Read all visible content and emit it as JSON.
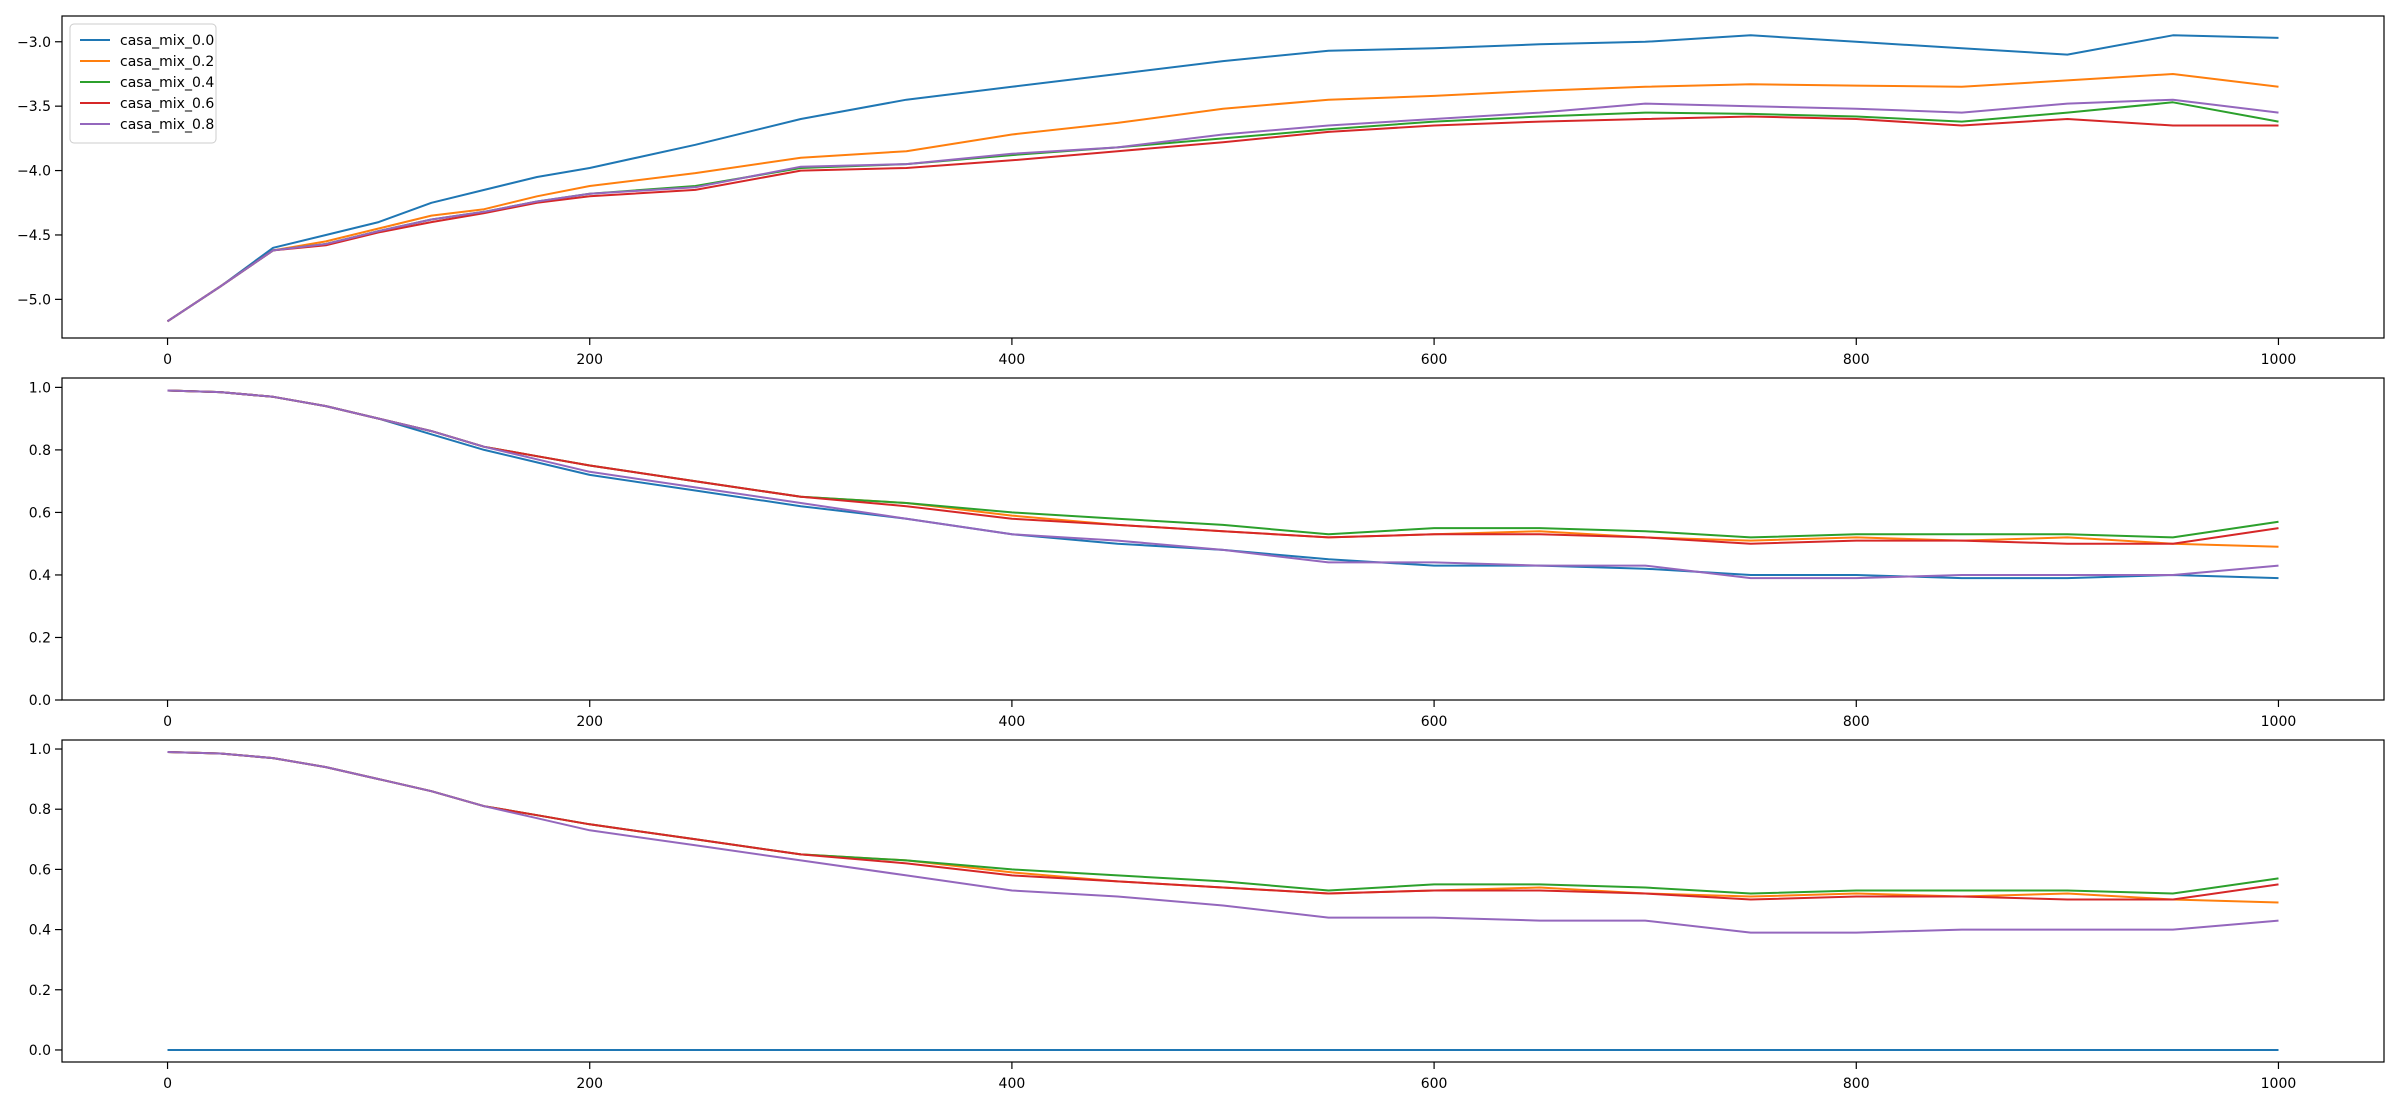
{
  "chart_data": [
    {
      "type": "line",
      "title": "",
      "xlabel": "",
      "ylabel": "",
      "xlim": [
        -50,
        1050
      ],
      "ylim": [
        -5.3,
        -2.8
      ],
      "xticks": [
        0,
        200,
        400,
        600,
        800,
        1000
      ],
      "yticks": [
        -5.0,
        -4.5,
        -4.0,
        -3.5,
        -3.0
      ],
      "ytick_labels": [
        "−5.0",
        "−4.5",
        "−4.0",
        "−3.5",
        "−3.0"
      ],
      "legend": {
        "placement": "upper-left",
        "entries": [
          "casa_mix_0.0",
          "casa_mix_0.2",
          "casa_mix_0.4",
          "casa_mix_0.6",
          "casa_mix_0.8"
        ]
      },
      "grid": false,
      "x": [
        0,
        25,
        50,
        75,
        100,
        125,
        150,
        175,
        200,
        250,
        300,
        350,
        400,
        450,
        500,
        550,
        600,
        650,
        700,
        750,
        800,
        850,
        900,
        950,
        1000
      ],
      "series": [
        {
          "name": "casa_mix_0.0",
          "color": "#1f77b4",
          "values": [
            -5.17,
            -4.9,
            -4.6,
            -4.5,
            -4.4,
            -4.25,
            -4.15,
            -4.05,
            -3.98,
            -3.8,
            -3.6,
            -3.45,
            -3.35,
            -3.25,
            -3.15,
            -3.07,
            -3.05,
            -3.02,
            -3.0,
            -2.95,
            -3.0,
            -3.05,
            -3.1,
            -2.95,
            -2.97
          ]
        },
        {
          "name": "casa_mix_0.2",
          "color": "#ff7f0e",
          "values": [
            -5.17,
            -4.9,
            -4.62,
            -4.55,
            -4.45,
            -4.35,
            -4.3,
            -4.2,
            -4.12,
            -4.02,
            -3.9,
            -3.85,
            -3.72,
            -3.63,
            -3.52,
            -3.45,
            -3.42,
            -3.38,
            -3.35,
            -3.33,
            -3.34,
            -3.35,
            -3.3,
            -3.25,
            -3.35
          ]
        },
        {
          "name": "casa_mix_0.4",
          "color": "#2ca02c",
          "values": [
            -5.17,
            -4.9,
            -4.62,
            -4.57,
            -4.47,
            -4.38,
            -4.32,
            -4.24,
            -4.18,
            -4.12,
            -3.98,
            -3.95,
            -3.88,
            -3.82,
            -3.75,
            -3.68,
            -3.62,
            -3.58,
            -3.55,
            -3.56,
            -3.58,
            -3.62,
            -3.55,
            -3.47,
            -3.62
          ]
        },
        {
          "name": "casa_mix_0.6",
          "color": "#d62728",
          "values": [
            -5.17,
            -4.9,
            -4.62,
            -4.58,
            -4.48,
            -4.4,
            -4.33,
            -4.25,
            -4.2,
            -4.15,
            -4.0,
            -3.98,
            -3.92,
            -3.85,
            -3.78,
            -3.7,
            -3.65,
            -3.62,
            -3.6,
            -3.58,
            -3.6,
            -3.65,
            -3.6,
            -3.65,
            -3.65
          ]
        },
        {
          "name": "casa_mix_0.8",
          "color": "#9467bd",
          "values": [
            -5.17,
            -4.9,
            -4.62,
            -4.57,
            -4.47,
            -4.38,
            -4.32,
            -4.24,
            -4.18,
            -4.13,
            -3.97,
            -3.95,
            -3.87,
            -3.82,
            -3.72,
            -3.65,
            -3.6,
            -3.55,
            -3.48,
            -3.5,
            -3.52,
            -3.55,
            -3.48,
            -3.45,
            -3.55
          ]
        }
      ]
    },
    {
      "type": "line",
      "title": "",
      "xlabel": "",
      "ylabel": "",
      "xlim": [
        -50,
        1050
      ],
      "ylim": [
        0.0,
        1.03
      ],
      "xticks": [
        0,
        200,
        400,
        600,
        800,
        1000
      ],
      "yticks": [
        0.0,
        0.2,
        0.4,
        0.6,
        0.8,
        1.0
      ],
      "ytick_labels": [
        "0.0",
        "0.2",
        "0.4",
        "0.6",
        "0.8",
        "1.0"
      ],
      "grid": false,
      "x": [
        0,
        25,
        50,
        75,
        100,
        125,
        150,
        175,
        200,
        250,
        300,
        350,
        400,
        450,
        500,
        550,
        600,
        650,
        700,
        750,
        800,
        850,
        900,
        950,
        1000
      ],
      "series": [
        {
          "name": "casa_mix_0.0",
          "color": "#1f77b4",
          "values": [
            0.99,
            0.985,
            0.97,
            0.94,
            0.9,
            0.85,
            0.8,
            0.76,
            0.72,
            0.67,
            0.62,
            0.58,
            0.53,
            0.5,
            0.48,
            0.45,
            0.43,
            0.43,
            0.42,
            0.4,
            0.4,
            0.39,
            0.39,
            0.4,
            0.39
          ]
        },
        {
          "name": "casa_mix_0.2",
          "color": "#ff7f0e",
          "values": [
            0.99,
            0.985,
            0.97,
            0.94,
            0.9,
            0.86,
            0.81,
            0.78,
            0.75,
            0.7,
            0.65,
            0.63,
            0.59,
            0.56,
            0.54,
            0.52,
            0.53,
            0.54,
            0.52,
            0.51,
            0.52,
            0.51,
            0.52,
            0.5,
            0.49
          ]
        },
        {
          "name": "casa_mix_0.4",
          "color": "#2ca02c",
          "values": [
            0.99,
            0.985,
            0.97,
            0.94,
            0.9,
            0.86,
            0.81,
            0.78,
            0.75,
            0.7,
            0.65,
            0.63,
            0.6,
            0.58,
            0.56,
            0.53,
            0.55,
            0.55,
            0.54,
            0.52,
            0.53,
            0.53,
            0.53,
            0.52,
            0.57
          ]
        },
        {
          "name": "casa_mix_0.6",
          "color": "#d62728",
          "values": [
            0.99,
            0.985,
            0.97,
            0.94,
            0.9,
            0.86,
            0.81,
            0.78,
            0.75,
            0.7,
            0.65,
            0.62,
            0.58,
            0.56,
            0.54,
            0.52,
            0.53,
            0.53,
            0.52,
            0.5,
            0.51,
            0.51,
            0.5,
            0.5,
            0.55
          ]
        },
        {
          "name": "casa_mix_0.8",
          "color": "#9467bd",
          "values": [
            0.99,
            0.985,
            0.97,
            0.94,
            0.9,
            0.86,
            0.81,
            0.77,
            0.73,
            0.68,
            0.63,
            0.58,
            0.53,
            0.51,
            0.48,
            0.44,
            0.44,
            0.43,
            0.43,
            0.39,
            0.39,
            0.4,
            0.4,
            0.4,
            0.43
          ]
        }
      ]
    },
    {
      "type": "line",
      "title": "",
      "xlabel": "",
      "ylabel": "",
      "xlim": [
        -50,
        1050
      ],
      "ylim": [
        -0.04,
        1.03
      ],
      "xticks": [
        0,
        200,
        400,
        600,
        800,
        1000
      ],
      "yticks": [
        0.0,
        0.2,
        0.4,
        0.6,
        0.8,
        1.0
      ],
      "ytick_labels": [
        "0.0",
        "0.2",
        "0.4",
        "0.6",
        "0.8",
        "1.0"
      ],
      "grid": false,
      "x": [
        0,
        25,
        50,
        75,
        100,
        125,
        150,
        175,
        200,
        250,
        300,
        350,
        400,
        450,
        500,
        550,
        600,
        650,
        700,
        750,
        800,
        850,
        900,
        950,
        1000
      ],
      "series": [
        {
          "name": "casa_mix_0.0",
          "color": "#1f77b4",
          "values": [
            0,
            0,
            0,
            0,
            0,
            0,
            0,
            0,
            0,
            0,
            0,
            0,
            0,
            0,
            0,
            0,
            0,
            0,
            0,
            0,
            0,
            0,
            0,
            0,
            0
          ]
        },
        {
          "name": "casa_mix_0.2",
          "color": "#ff7f0e",
          "values": [
            0.99,
            0.985,
            0.97,
            0.94,
            0.9,
            0.86,
            0.81,
            0.78,
            0.75,
            0.7,
            0.65,
            0.63,
            0.59,
            0.56,
            0.54,
            0.52,
            0.53,
            0.54,
            0.52,
            0.51,
            0.52,
            0.51,
            0.52,
            0.5,
            0.49
          ]
        },
        {
          "name": "casa_mix_0.4",
          "color": "#2ca02c",
          "values": [
            0.99,
            0.985,
            0.97,
            0.94,
            0.9,
            0.86,
            0.81,
            0.78,
            0.75,
            0.7,
            0.65,
            0.63,
            0.6,
            0.58,
            0.56,
            0.53,
            0.55,
            0.55,
            0.54,
            0.52,
            0.53,
            0.53,
            0.53,
            0.52,
            0.57
          ]
        },
        {
          "name": "casa_mix_0.6",
          "color": "#d62728",
          "values": [
            0.99,
            0.985,
            0.97,
            0.94,
            0.9,
            0.86,
            0.81,
            0.78,
            0.75,
            0.7,
            0.65,
            0.62,
            0.58,
            0.56,
            0.54,
            0.52,
            0.53,
            0.53,
            0.52,
            0.5,
            0.51,
            0.51,
            0.5,
            0.5,
            0.55
          ]
        },
        {
          "name": "casa_mix_0.8",
          "color": "#9467bd",
          "values": [
            0.99,
            0.985,
            0.97,
            0.94,
            0.9,
            0.86,
            0.81,
            0.77,
            0.73,
            0.68,
            0.63,
            0.58,
            0.53,
            0.51,
            0.48,
            0.44,
            0.44,
            0.43,
            0.43,
            0.39,
            0.39,
            0.4,
            0.4,
            0.4,
            0.43
          ]
        }
      ]
    }
  ]
}
